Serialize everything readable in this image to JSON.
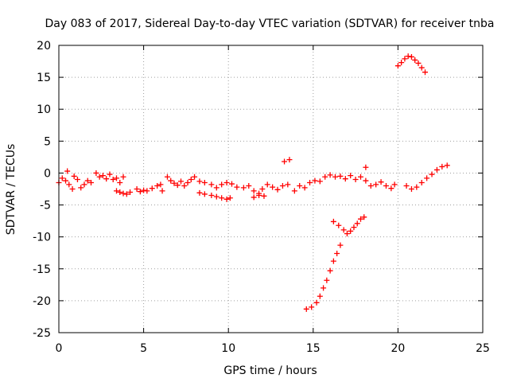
{
  "chart_data": {
    "type": "scatter",
    "title": "Day 083 of 2017, Sidereal Day-to-day VTEC variation (SDTVAR) for receiver tnba",
    "xlabel": "GPS time / hours",
    "ylabel": "SDTVAR / TECUs",
    "xlim": [
      0,
      25
    ],
    "ylim": [
      -25,
      20
    ],
    "xticks": [
      0,
      5,
      10,
      15,
      20,
      25
    ],
    "yticks": [
      -25,
      -20,
      -15,
      -10,
      -5,
      0,
      5,
      10,
      15,
      20
    ],
    "grid": true,
    "marker": "+",
    "color": "#ff0000",
    "series": [
      {
        "name": "tnba",
        "points": [
          [
            0.0,
            -1.5
          ],
          [
            0.2,
            -0.8
          ],
          [
            0.4,
            -1.2
          ],
          [
            0.5,
            0.3
          ],
          [
            0.6,
            -1.8
          ],
          [
            0.8,
            -2.5
          ],
          [
            0.9,
            -0.5
          ],
          [
            1.1,
            -1.0
          ],
          [
            1.3,
            -2.3
          ],
          [
            1.5,
            -1.8
          ],
          [
            1.7,
            -1.2
          ],
          [
            1.9,
            -1.5
          ],
          [
            2.2,
            0.0
          ],
          [
            2.4,
            -0.6
          ],
          [
            2.6,
            -0.4
          ],
          [
            2.8,
            -0.9
          ],
          [
            3.0,
            -0.2
          ],
          [
            3.2,
            -1.0
          ],
          [
            3.4,
            -0.8
          ],
          [
            3.6,
            -1.5
          ],
          [
            3.8,
            -0.6
          ],
          [
            3.4,
            -2.8
          ],
          [
            3.6,
            -3.0
          ],
          [
            3.8,
            -3.2
          ],
          [
            4.0,
            -3.3
          ],
          [
            4.2,
            -3.0
          ],
          [
            4.6,
            -2.5
          ],
          [
            4.8,
            -2.9
          ],
          [
            5.0,
            -2.7
          ],
          [
            5.2,
            -2.8
          ],
          [
            5.5,
            -2.4
          ],
          [
            5.8,
            -2.0
          ],
          [
            6.0,
            -1.8
          ],
          [
            6.1,
            -2.8
          ],
          [
            6.4,
            -0.6
          ],
          [
            6.6,
            -1.2
          ],
          [
            6.8,
            -1.6
          ],
          [
            7.0,
            -1.9
          ],
          [
            7.2,
            -1.3
          ],
          [
            7.4,
            -2.0
          ],
          [
            7.6,
            -1.5
          ],
          [
            7.8,
            -1.0
          ],
          [
            8.0,
            -0.6
          ],
          [
            8.3,
            -1.3
          ],
          [
            8.6,
            -1.5
          ],
          [
            9.0,
            -1.8
          ],
          [
            8.3,
            -3.1
          ],
          [
            8.6,
            -3.3
          ],
          [
            9.0,
            -3.5
          ],
          [
            9.3,
            -3.7
          ],
          [
            9.6,
            -3.9
          ],
          [
            9.9,
            -4.1
          ],
          [
            10.1,
            -3.9
          ],
          [
            9.3,
            -2.3
          ],
          [
            9.6,
            -1.8
          ],
          [
            9.9,
            -1.5
          ],
          [
            10.2,
            -1.7
          ],
          [
            10.5,
            -2.2
          ],
          [
            10.9,
            -2.3
          ],
          [
            11.2,
            -2.0
          ],
          [
            11.5,
            -2.8
          ],
          [
            11.8,
            -3.2
          ],
          [
            12.0,
            -2.5
          ],
          [
            12.3,
            -1.8
          ],
          [
            12.6,
            -2.2
          ],
          [
            12.9,
            -2.6
          ],
          [
            13.2,
            -2.0
          ],
          [
            13.5,
            -1.8
          ],
          [
            11.5,
            -3.8
          ],
          [
            11.8,
            -3.5
          ],
          [
            12.1,
            -3.6
          ],
          [
            13.3,
            1.8
          ],
          [
            13.6,
            2.1
          ],
          [
            13.9,
            -2.8
          ],
          [
            14.2,
            -2.0
          ],
          [
            14.5,
            -2.3
          ],
          [
            14.8,
            -1.5
          ],
          [
            15.1,
            -1.2
          ],
          [
            15.4,
            -1.3
          ],
          [
            15.7,
            -0.6
          ],
          [
            16.0,
            -0.3
          ],
          [
            16.3,
            -0.6
          ],
          [
            16.6,
            -0.5
          ],
          [
            16.9,
            -0.9
          ],
          [
            17.2,
            -0.4
          ],
          [
            17.5,
            -1.0
          ],
          [
            17.8,
            -0.6
          ],
          [
            18.1,
            0.9
          ],
          [
            18.1,
            -1.2
          ],
          [
            18.4,
            -2.0
          ],
          [
            18.7,
            -1.8
          ],
          [
            19.0,
            -1.4
          ],
          [
            19.3,
            -2.0
          ],
          [
            19.6,
            -2.4
          ],
          [
            19.8,
            -1.8
          ],
          [
            20.5,
            -2.0
          ],
          [
            20.8,
            -2.5
          ],
          [
            21.1,
            -2.2
          ],
          [
            21.4,
            -1.5
          ],
          [
            21.7,
            -0.8
          ],
          [
            22.0,
            -0.2
          ],
          [
            22.3,
            0.5
          ],
          [
            22.6,
            1.0
          ],
          [
            22.9,
            1.2
          ],
          [
            20.0,
            16.8
          ],
          [
            20.2,
            17.3
          ],
          [
            20.4,
            17.9
          ],
          [
            20.6,
            18.3
          ],
          [
            20.8,
            18.2
          ],
          [
            21.0,
            17.7
          ],
          [
            21.2,
            17.2
          ],
          [
            21.4,
            16.5
          ],
          [
            21.6,
            15.8
          ],
          [
            16.2,
            -7.6
          ],
          [
            16.5,
            -8.2
          ],
          [
            16.8,
            -8.9
          ],
          [
            17.0,
            -9.5
          ],
          [
            17.2,
            -9.1
          ],
          [
            17.4,
            -8.5
          ],
          [
            17.6,
            -7.9
          ],
          [
            17.8,
            -7.2
          ],
          [
            18.0,
            -6.9
          ],
          [
            14.6,
            -21.3
          ],
          [
            14.9,
            -21.0
          ],
          [
            15.2,
            -20.3
          ],
          [
            15.4,
            -19.3
          ],
          [
            15.6,
            -18.0
          ],
          [
            15.8,
            -16.8
          ],
          [
            16.0,
            -15.3
          ],
          [
            16.2,
            -13.8
          ],
          [
            16.4,
            -12.6
          ],
          [
            16.6,
            -11.3
          ]
        ]
      }
    ]
  }
}
